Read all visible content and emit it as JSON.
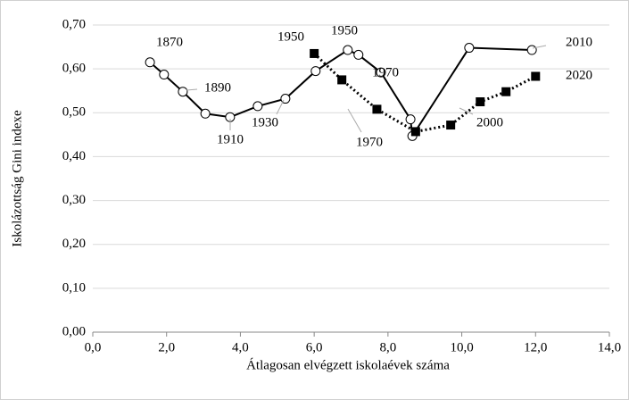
{
  "chart_data": {
    "type": "line",
    "xlabel": "Átlagosan elvégzett iskolaévek száma",
    "ylabel": "Iskolázottság Gini indexe",
    "xlim": [
      0,
      14
    ],
    "xticks": [
      {
        "value": 0,
        "label": "0,0"
      },
      {
        "value": 2,
        "label": "2,0"
      },
      {
        "value": 4,
        "label": "4,0"
      },
      {
        "value": 6,
        "label": "6,0"
      },
      {
        "value": 8,
        "label": "8,0"
      },
      {
        "value": 10,
        "label": "10,0"
      },
      {
        "value": 12,
        "label": "12,0"
      },
      {
        "value": 14,
        "label": "14,0"
      }
    ],
    "ylim": [
      0,
      0.7
    ],
    "yticks": [
      {
        "value": 0,
        "label": "0,00"
      },
      {
        "value": 0.1,
        "label": "0,10"
      },
      {
        "value": 0.2,
        "label": "0,20"
      },
      {
        "value": 0.3,
        "label": "0,30"
      },
      {
        "value": 0.4,
        "label": "0,40"
      },
      {
        "value": 0.5,
        "label": "0,50"
      },
      {
        "value": 0.6,
        "label": "0,60"
      },
      {
        "value": 0.7,
        "label": "0,70"
      }
    ],
    "grid": true,
    "series": [
      {
        "color": "#000000",
        "marker": "circle",
        "linestyle": "solid",
        "x": [
          1.55,
          1.93,
          2.44,
          3.05,
          3.72,
          4.47,
          5.22,
          6.04,
          6.91,
          7.2,
          7.81,
          8.61,
          8.66,
          10.2,
          11.9
        ],
        "values": [
          0.615,
          0.587,
          0.548,
          0.498,
          0.49,
          0.515,
          0.532,
          0.595,
          0.643,
          0.632,
          0.592,
          0.485,
          0.447,
          0.648,
          0.643
        ]
      },
      {
        "color": "#000000",
        "marker": "square",
        "linestyle": "dotted",
        "x": [
          6.0,
          6.75,
          7.7,
          8.75,
          9.7,
          10.5,
          11.2,
          12.0
        ],
        "values": [
          0.635,
          0.575,
          0.508,
          0.457,
          0.472,
          0.525,
          0.548,
          0.583
        ]
      }
    ],
    "annotations": [
      "1870",
      "1890",
      "1910",
      "1930",
      "1950",
      "1950",
      "1970",
      "1970",
      "2000",
      "2010",
      "2020"
    ]
  }
}
